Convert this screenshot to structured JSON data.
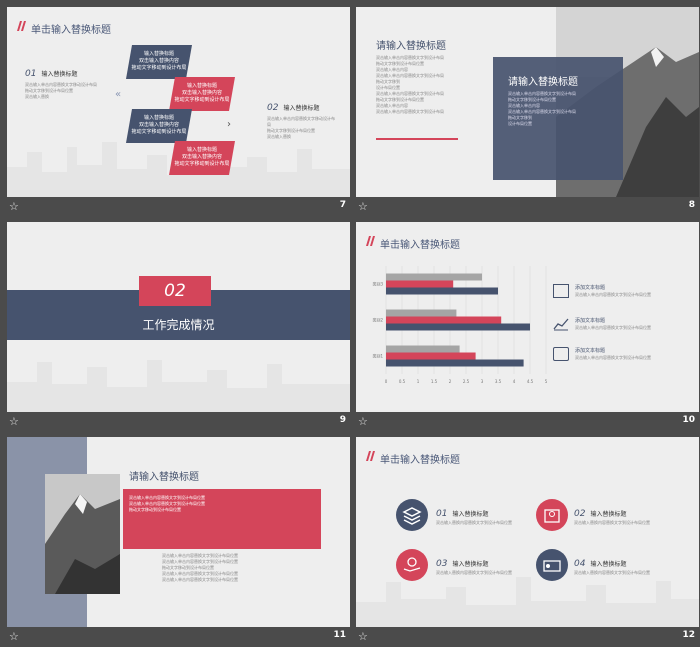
{
  "colors": {
    "navy": "#46536e",
    "red": "#d4455a",
    "gray": "#a5a5a5",
    "bg": "#eeeeee",
    "dark": "#4b4b4b"
  },
  "slides": [
    {
      "num": "7",
      "title": "单击输入替换标题",
      "item1_num": "01",
      "item1_title": "输入替换标题",
      "item2_num": "02",
      "item2_title": "输入替换标题",
      "box_title": "输入替换标题",
      "box_text1": "双击输入替换内容",
      "box_text2": "拖动文字移动到设计布局",
      "lines": [
        "双击输入单击内容替换文字移动设计布局",
        "拖动文字移到设计布局位置",
        "双击输入替换"
      ]
    },
    {
      "num": "8",
      "title": "请输入替换标题",
      "box_title": "请输入替换标题",
      "lines": [
        "双击输入单击内容替换文字到设计布局",
        "拖动文字移到设计布局位置",
        "双击输入单击内容",
        "双击输入单击内容替换文字到设计布局",
        "拖动文字移到",
        "设计布局位置"
      ]
    },
    {
      "num": "9",
      "section_num": "02",
      "section_title": "工作完成情况"
    },
    {
      "num": "10",
      "title": "单击输入替换标题",
      "legend": [
        "添加文本标题",
        "添加文本标题",
        "添加文本标题"
      ],
      "legend_text": "双击输入单击内容替换文字到设计布局位置",
      "cats": [
        "类别1",
        "类别2",
        "类别3"
      ],
      "ticks": [
        "0",
        "0.5",
        "1",
        "1.5",
        "2",
        "2.5",
        "3",
        "3.5",
        "4",
        "4.5",
        "5"
      ]
    },
    {
      "num": "11",
      "title": "请输入替换标题",
      "lines": [
        "双击输入单击内容替换文字到设计布局位置",
        "双击输入单击内容替换文字到设计布局位置",
        "拖动文字移动到设计布局位置"
      ]
    },
    {
      "num": "12",
      "title": "单击输入替换标题",
      "items": [
        {
          "n": "01",
          "t": "输入替换标题"
        },
        {
          "n": "02",
          "t": "输入替换标题"
        },
        {
          "n": "03",
          "t": "输入替换标题"
        },
        {
          "n": "04",
          "t": "输入替换标题"
        }
      ],
      "desc": "双击输入替换内容替换文字到设计布局位置"
    }
  ],
  "chart_data": {
    "type": "bar",
    "orientation": "horizontal",
    "categories": [
      "类别1",
      "类别2",
      "类别3"
    ],
    "series": [
      {
        "values": [
          4.3,
          4.5,
          3.5
        ]
      },
      {
        "values": [
          2.8,
          3.6,
          2.1
        ]
      },
      {
        "values": [
          2.3,
          2.2,
          3.0
        ]
      }
    ],
    "xlim": [
      0,
      5
    ]
  },
  "star": "☆"
}
